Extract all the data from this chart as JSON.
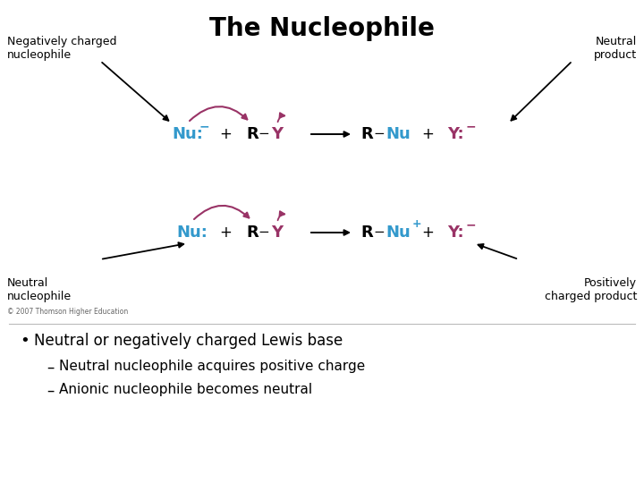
{
  "title": "The Nucleophile",
  "title_fontsize": 20,
  "title_fontweight": "bold",
  "bg_color": "#ffffff",
  "text_color": "#000000",
  "cyan_color": "#3399cc",
  "magenta_color": "#993366",
  "arrow_color": "#993366",
  "bullet_text": "Neutral or negatively charged Lewis base",
  "sub1": "Neutral nucleophile acquires positive charge",
  "sub2": "Anionic nucleophile becomes neutral",
  "copyright": "© 2007 Thomson Higher Education",
  "label_neg_nuc": "Negatively charged\nnucleophile",
  "label_neutral_prod": "Neutral\nproduct",
  "label_neutral_nuc": "Neutral\nnucleophile",
  "label_pos_prod": "Positively\ncharged product"
}
